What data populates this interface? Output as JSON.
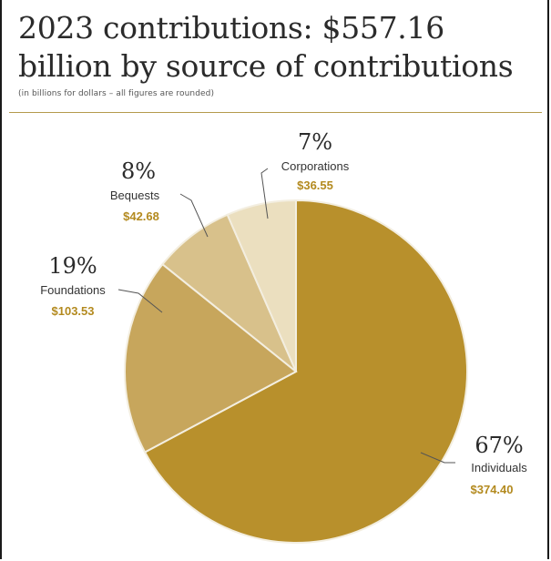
{
  "page": {
    "title": "2023 contributions: $557.16 billion by source of contributions",
    "subtitle": "(in billions for dollars – all figures are rounded)",
    "colors": {
      "rule": "#b49a4c",
      "amount_text": "#b38a1f",
      "slice_border": "#f3eee0",
      "leader": "#555555"
    }
  },
  "chart_data": {
    "type": "pie",
    "title": "2023 contributions: $557.16 billion by source of contributions",
    "subtitle": "(in billions for dollars – all figures are rounded)",
    "total": 557.16,
    "slices": [
      {
        "label": "Individuals",
        "value": 374.4,
        "percent_label": "67%",
        "value_label": "$374.40",
        "color": "#b8902c"
      },
      {
        "label": "Foundations",
        "value": 103.53,
        "percent_label": "19%",
        "value_label": "$103.53",
        "color": "#c7a65c"
      },
      {
        "label": "Bequests",
        "value": 42.68,
        "percent_label": "8%",
        "value_label": "$42.68",
        "color": "#d8c18b"
      },
      {
        "label": "Corporations",
        "value": 36.55,
        "percent_label": "7%",
        "value_label": "$36.55",
        "color": "#ebdfbf"
      }
    ]
  }
}
